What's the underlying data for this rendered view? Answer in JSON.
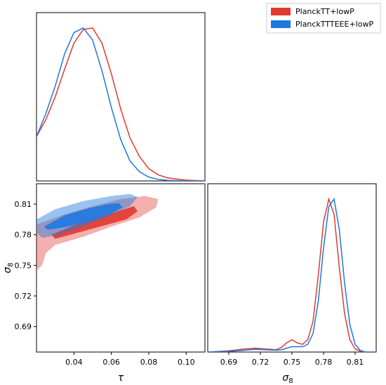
{
  "chart_data": [
    {
      "type": "line",
      "panel": "tau-marginal",
      "xlim": [
        0.02,
        0.11
      ],
      "series": [
        {
          "name": "PlanckTT+lowP",
          "color": "#e03a2f",
          "x": [
            0.02,
            0.025,
            0.03,
            0.035,
            0.04,
            0.045,
            0.05,
            0.055,
            0.06,
            0.065,
            0.07,
            0.075,
            0.08,
            0.085,
            0.09,
            0.1,
            0.11
          ],
          "y": [
            0.29,
            0.4,
            0.55,
            0.73,
            0.9,
            0.99,
            1.0,
            0.9,
            0.7,
            0.47,
            0.28,
            0.16,
            0.08,
            0.04,
            0.02,
            0.005,
            0.0
          ]
        },
        {
          "name": "PlanckTTTEEE+lowP",
          "color": "#1e78e0",
          "x": [
            0.02,
            0.025,
            0.03,
            0.035,
            0.04,
            0.045,
            0.05,
            0.055,
            0.06,
            0.065,
            0.07,
            0.075,
            0.08,
            0.085,
            0.09,
            0.1,
            0.11
          ],
          "y": [
            0.29,
            0.44,
            0.62,
            0.83,
            0.97,
            1.0,
            0.92,
            0.72,
            0.48,
            0.27,
            0.13,
            0.06,
            0.025,
            0.01,
            0.004,
            0.0,
            0.0
          ]
        }
      ]
    },
    {
      "type": "contour",
      "panel": "tau-sigma8",
      "xlabel": "τ",
      "ylabel": "σ",
      "ylabel_sub": "8",
      "xlim": [
        0.02,
        0.11
      ],
      "ylim": [
        0.665,
        0.83
      ],
      "xticks": [
        "0.04",
        "0.06",
        "0.08",
        "0.10"
      ],
      "yticks": [
        "0.69",
        "0.72",
        "0.75",
        "0.78",
        "0.81"
      ],
      "series": [
        {
          "name": "PlanckTT+lowP",
          "color": "#e03a2f",
          "outer": [
            [
              0.02,
              0.745
            ],
            [
              0.02,
              0.79
            ],
            [
              0.035,
              0.8
            ],
            [
              0.05,
              0.808
            ],
            [
              0.065,
              0.815
            ],
            [
              0.078,
              0.818
            ],
            [
              0.085,
              0.815
            ],
            [
              0.084,
              0.807
            ],
            [
              0.075,
              0.797
            ],
            [
              0.06,
              0.788
            ],
            [
              0.045,
              0.778
            ],
            [
              0.03,
              0.77
            ],
            [
              0.025,
              0.762
            ],
            [
              0.023,
              0.75
            ]
          ],
          "inner": [
            [
              0.028,
              0.78
            ],
            [
              0.045,
              0.793
            ],
            [
              0.06,
              0.801
            ],
            [
              0.072,
              0.808
            ],
            [
              0.074,
              0.803
            ],
            [
              0.068,
              0.795
            ],
            [
              0.052,
              0.787
            ],
            [
              0.038,
              0.78
            ],
            [
              0.03,
              0.776
            ]
          ]
        },
        {
          "name": "PlanckTTTEEE+lowP",
          "color": "#1e78e0",
          "outer": [
            [
              0.02,
              0.782
            ],
            [
              0.02,
              0.795
            ],
            [
              0.03,
              0.805
            ],
            [
              0.045,
              0.813
            ],
            [
              0.06,
              0.818
            ],
            [
              0.07,
              0.82
            ],
            [
              0.074,
              0.817
            ],
            [
              0.07,
              0.808
            ],
            [
              0.058,
              0.798
            ],
            [
              0.045,
              0.788
            ],
            [
              0.032,
              0.78
            ],
            [
              0.023,
              0.777
            ]
          ],
          "inner": [
            [
              0.024,
              0.788
            ],
            [
              0.035,
              0.799
            ],
            [
              0.048,
              0.806
            ],
            [
              0.058,
              0.81
            ],
            [
              0.064,
              0.811
            ],
            [
              0.066,
              0.807
            ],
            [
              0.058,
              0.799
            ],
            [
              0.046,
              0.792
            ],
            [
              0.034,
              0.787
            ],
            [
              0.026,
              0.785
            ]
          ]
        }
      ]
    },
    {
      "type": "line",
      "panel": "sigma8-marginal",
      "xlabel": "σ",
      "xlabel_sub": "8",
      "xlim": [
        0.67,
        0.83
      ],
      "xticks": [
        "0.69",
        "0.72",
        "0.75",
        "0.78",
        "0.81"
      ],
      "series": [
        {
          "name": "PlanckTT+lowP",
          "color": "#e03a2f",
          "x": [
            0.67,
            0.69,
            0.705,
            0.715,
            0.725,
            0.735,
            0.74,
            0.745,
            0.75,
            0.755,
            0.76,
            0.765,
            0.77,
            0.775,
            0.78,
            0.785,
            0.79,
            0.795,
            0.8,
            0.805,
            0.81,
            0.815,
            0.82,
            0.83
          ],
          "y": [
            0.0,
            0.008,
            0.02,
            0.025,
            0.02,
            0.015,
            0.03,
            0.06,
            0.08,
            0.06,
            0.05,
            0.08,
            0.2,
            0.5,
            0.85,
            1.0,
            0.9,
            0.55,
            0.25,
            0.08,
            0.02,
            0.005,
            0.0,
            0.0
          ]
        },
        {
          "name": "PlanckTTTEEE+lowP",
          "color": "#1e78e0",
          "x": [
            0.67,
            0.69,
            0.705,
            0.715,
            0.725,
            0.735,
            0.74,
            0.745,
            0.75,
            0.755,
            0.76,
            0.765,
            0.77,
            0.775,
            0.78,
            0.785,
            0.79,
            0.795,
            0.8,
            0.805,
            0.81,
            0.815,
            0.82,
            0.83
          ],
          "y": [
            0.0,
            0.004,
            0.012,
            0.018,
            0.015,
            0.012,
            0.015,
            0.025,
            0.035,
            0.035,
            0.035,
            0.05,
            0.12,
            0.33,
            0.68,
            0.95,
            1.0,
            0.8,
            0.45,
            0.18,
            0.05,
            0.01,
            0.0,
            0.0
          ]
        }
      ]
    }
  ],
  "legend": {
    "placement": "top-right",
    "items": [
      {
        "label": "PlanckTT+lowP",
        "color": "#e03a2f"
      },
      {
        "label": "PlanckTTTEEE+lowP",
        "color": "#1e78e0"
      }
    ]
  }
}
